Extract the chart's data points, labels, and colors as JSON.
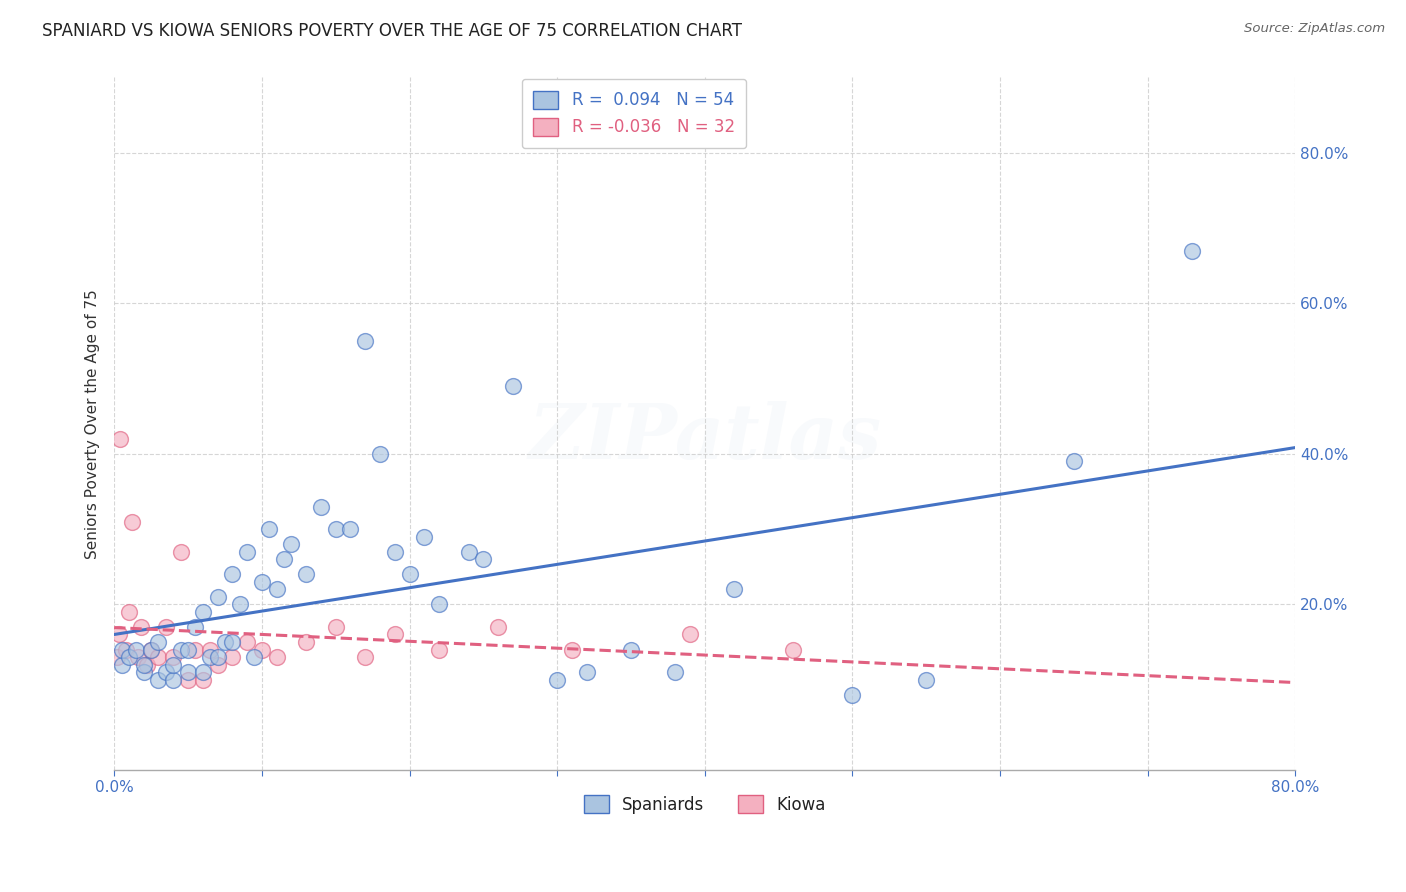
{
  "title": "SPANIARD VS KIOWA SENIORS POVERTY OVER THE AGE OF 75 CORRELATION CHART",
  "source": "Source: ZipAtlas.com",
  "ylabel": "Seniors Poverty Over the Age of 75",
  "xlim": [
    0.0,
    0.8
  ],
  "ylim": [
    -0.02,
    0.9
  ],
  "xticks": [
    0.0,
    0.1,
    0.2,
    0.3,
    0.4,
    0.5,
    0.6,
    0.7,
    0.8
  ],
  "yticks": [
    0.2,
    0.4,
    0.6,
    0.8
  ],
  "background_color": "#ffffff",
  "grid_color": "#cccccc",
  "spaniards_color": "#aac4e0",
  "kiowa_color": "#f4b0c0",
  "spaniards_line_color": "#4472c4",
  "kiowa_line_color": "#e06080",
  "R_spaniards": 0.094,
  "N_spaniards": 54,
  "R_kiowa": -0.036,
  "N_kiowa": 32,
  "spaniards_x": [
    0.005,
    0.005,
    0.01,
    0.015,
    0.02,
    0.02,
    0.025,
    0.03,
    0.03,
    0.035,
    0.04,
    0.04,
    0.045,
    0.05,
    0.05,
    0.055,
    0.06,
    0.06,
    0.065,
    0.07,
    0.07,
    0.075,
    0.08,
    0.08,
    0.085,
    0.09,
    0.095,
    0.1,
    0.105,
    0.11,
    0.115,
    0.12,
    0.13,
    0.14,
    0.15,
    0.16,
    0.17,
    0.18,
    0.19,
    0.2,
    0.21,
    0.22,
    0.24,
    0.25,
    0.27,
    0.3,
    0.32,
    0.35,
    0.38,
    0.42,
    0.5,
    0.55,
    0.65,
    0.73
  ],
  "spaniards_y": [
    0.12,
    0.14,
    0.13,
    0.14,
    0.11,
    0.12,
    0.14,
    0.1,
    0.15,
    0.11,
    0.1,
    0.12,
    0.14,
    0.11,
    0.14,
    0.17,
    0.11,
    0.19,
    0.13,
    0.13,
    0.21,
    0.15,
    0.15,
    0.24,
    0.2,
    0.27,
    0.13,
    0.23,
    0.3,
    0.22,
    0.26,
    0.28,
    0.24,
    0.33,
    0.3,
    0.3,
    0.55,
    0.4,
    0.27,
    0.24,
    0.29,
    0.2,
    0.27,
    0.26,
    0.49,
    0.1,
    0.11,
    0.14,
    0.11,
    0.22,
    0.08,
    0.1,
    0.39,
    0.67
  ],
  "kiowa_x": [
    0.002,
    0.003,
    0.004,
    0.008,
    0.01,
    0.012,
    0.016,
    0.018,
    0.022,
    0.025,
    0.03,
    0.035,
    0.04,
    0.045,
    0.05,
    0.055,
    0.06,
    0.065,
    0.07,
    0.08,
    0.09,
    0.1,
    0.11,
    0.13,
    0.15,
    0.17,
    0.19,
    0.22,
    0.26,
    0.31,
    0.39,
    0.46
  ],
  "kiowa_y": [
    0.13,
    0.16,
    0.42,
    0.14,
    0.19,
    0.31,
    0.13,
    0.17,
    0.12,
    0.14,
    0.13,
    0.17,
    0.13,
    0.27,
    0.1,
    0.14,
    0.1,
    0.14,
    0.12,
    0.13,
    0.15,
    0.14,
    0.13,
    0.15,
    0.17,
    0.13,
    0.16,
    0.14,
    0.17,
    0.14,
    0.16,
    0.14
  ],
  "watermark_text": "ZIPatlas",
  "watermark_fontsize": 55,
  "watermark_alpha": 0.12
}
